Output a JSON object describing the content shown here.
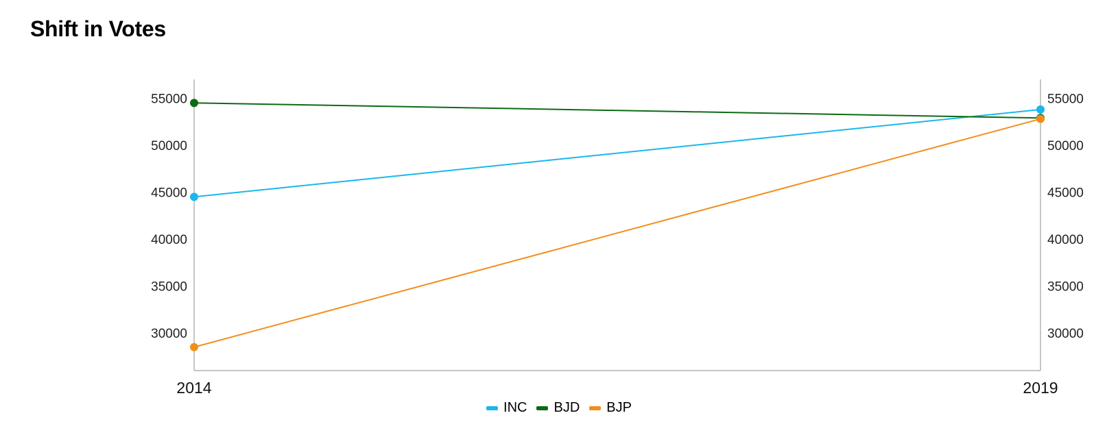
{
  "chart_data": {
    "type": "line",
    "title": "Shift in Votes",
    "xlabel": "",
    "ylabel": "",
    "categories": [
      "2014",
      "2019"
    ],
    "ylim": [
      26000,
      57000
    ],
    "yticks": [
      30000,
      35000,
      40000,
      45000,
      50000,
      55000
    ],
    "ytick_labels": [
      "30000",
      "35000",
      "40000",
      "45000",
      "50000",
      "55000"
    ],
    "dual_y_axis": true,
    "grid": false,
    "legend_position": "bottom-center",
    "series": [
      {
        "name": "INC",
        "values": [
          44500,
          53800
        ],
        "color": "#19b7ec"
      },
      {
        "name": "BJD",
        "values": [
          54500,
          52900
        ],
        "color": "#0b6b14"
      },
      {
        "name": "BJP",
        "values": [
          28500,
          52800
        ],
        "color": "#f28e1c"
      }
    ]
  }
}
